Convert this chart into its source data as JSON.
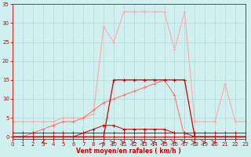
{
  "x": [
    0,
    1,
    2,
    3,
    4,
    5,
    6,
    7,
    8,
    9,
    10,
    11,
    12,
    13,
    14,
    15,
    16,
    17,
    18,
    19,
    20,
    21,
    22,
    23
  ],
  "gust_line_y": [
    4,
    4,
    4,
    4,
    4,
    5,
    5,
    5,
    6,
    29,
    25,
    33,
    33,
    33,
    33,
    33,
    23,
    33,
    4,
    4,
    4,
    14,
    4,
    4
  ],
  "avg_flat_y": [
    0,
    0,
    0,
    0,
    0,
    0,
    0,
    0,
    0,
    0,
    15,
    15,
    15,
    15,
    15,
    15,
    15,
    15,
    0,
    0,
    0,
    0,
    0,
    0
  ],
  "diag_line_y": [
    0,
    0,
    1,
    2,
    3,
    4,
    4,
    5,
    7,
    9,
    10,
    11,
    12,
    13,
    14,
    15,
    11,
    0,
    0,
    0,
    0,
    0,
    0,
    0
  ],
  "low_line1_y": [
    0,
    0,
    0,
    0,
    0,
    0,
    0,
    1,
    2,
    3,
    3,
    2,
    2,
    2,
    2,
    2,
    1,
    1,
    0,
    0,
    0,
    0,
    0,
    0
  ],
  "low_line2_y": [
    1,
    1,
    1,
    1,
    1,
    1,
    1,
    1,
    1,
    1,
    1,
    1,
    1,
    1,
    1,
    1,
    1,
    1,
    1,
    1,
    1,
    1,
    1,
    1
  ],
  "low_line3_y": [
    0,
    0,
    0,
    0,
    0,
    0,
    0,
    0,
    0,
    0,
    0,
    0,
    0,
    0,
    0,
    0,
    0,
    0,
    0,
    0,
    0,
    0,
    0,
    0
  ],
  "bg_color": "#cff0ef",
  "grid_color": "#aed4d3",
  "gust_color": "#ffaaaa",
  "avg_flat_color": "#cc0000",
  "diag_color": "#cc0000",
  "low1_color": "#cc0000",
  "low2_color": "#cc0000",
  "low3_color": "#cc0000",
  "xlabel": "Vent moyen/en rafales ( km/h )",
  "xlim": [
    0,
    23
  ],
  "ylim": [
    0,
    35
  ],
  "yticks": [
    0,
    5,
    10,
    15,
    20,
    25,
    30,
    35
  ],
  "xticks": [
    0,
    1,
    2,
    3,
    4,
    5,
    6,
    7,
    8,
    9,
    10,
    11,
    12,
    13,
    14,
    15,
    16,
    17,
    18,
    19,
    20,
    21,
    22,
    23
  ]
}
